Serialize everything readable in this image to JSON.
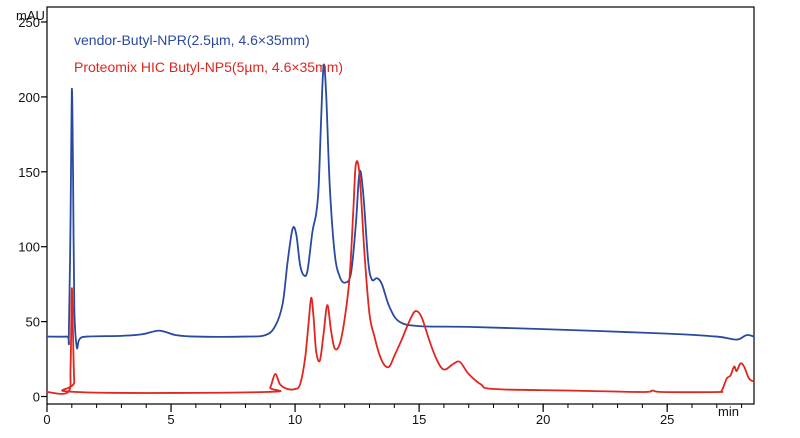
{
  "chart_data": {
    "type": "line",
    "title": "",
    "xlabel": "min",
    "ylabel": "mAU",
    "xlim": [
      0,
      28.5
    ],
    "ylim": [
      -5,
      260
    ],
    "legend_position": "top-left",
    "x_ticks": [
      0,
      5,
      10,
      15,
      20,
      25
    ],
    "y_ticks": [
      0,
      50,
      100,
      150,
      200,
      250
    ],
    "minor_x_step": 1,
    "series": [
      {
        "name": "vendor-Butyl-NPR(2.5µm, 4.6×35mm)",
        "color": "#2a49a0",
        "points": [
          [
            0,
            40
          ],
          [
            0.8,
            40
          ],
          [
            0.88,
            41
          ],
          [
            0.95,
            120
          ],
          [
            1.0,
            205
          ],
          [
            1.05,
            150
          ],
          [
            1.1,
            60
          ],
          [
            1.2,
            33
          ],
          [
            1.3,
            38
          ],
          [
            1.6,
            40
          ],
          [
            3.0,
            40.5
          ],
          [
            3.8,
            41.5
          ],
          [
            4.2,
            43
          ],
          [
            4.5,
            44
          ],
          [
            4.8,
            43
          ],
          [
            5.2,
            41
          ],
          [
            6.0,
            40
          ],
          [
            8.0,
            40
          ],
          [
            8.8,
            41
          ],
          [
            9.2,
            47
          ],
          [
            9.5,
            62
          ],
          [
            9.7,
            90
          ],
          [
            9.9,
            112
          ],
          [
            10.05,
            108
          ],
          [
            10.2,
            88
          ],
          [
            10.35,
            81
          ],
          [
            10.5,
            84
          ],
          [
            10.7,
            110
          ],
          [
            10.85,
            122
          ],
          [
            10.95,
            140
          ],
          [
            11.05,
            185
          ],
          [
            11.15,
            221
          ],
          [
            11.25,
            203
          ],
          [
            11.4,
            140
          ],
          [
            11.6,
            95
          ],
          [
            11.8,
            80
          ],
          [
            12.0,
            76
          ],
          [
            12.25,
            82
          ],
          [
            12.45,
            115
          ],
          [
            12.6,
            150
          ],
          [
            12.75,
            135
          ],
          [
            12.95,
            90
          ],
          [
            13.1,
            78
          ],
          [
            13.3,
            79
          ],
          [
            13.5,
            75
          ],
          [
            13.8,
            60
          ],
          [
            14.2,
            50
          ],
          [
            15.0,
            47
          ],
          [
            17.0,
            46.5
          ],
          [
            20.0,
            45
          ],
          [
            25.0,
            42
          ],
          [
            27.0,
            40
          ],
          [
            27.8,
            38
          ],
          [
            28.2,
            41
          ],
          [
            28.5,
            40
          ]
        ]
      },
      {
        "name": "Proteomix HIC Butyl-NP5(5µm, 4.6×35mm)",
        "color": "#e0261e",
        "points": [
          [
            0,
            3
          ],
          [
            0.85,
            3
          ],
          [
            0.95,
            20
          ],
          [
            1.0,
            72
          ],
          [
            1.05,
            40
          ],
          [
            1.1,
            10
          ],
          [
            1.2,
            3
          ],
          [
            8.8,
            3
          ],
          [
            9.0,
            6
          ],
          [
            9.2,
            15
          ],
          [
            9.4,
            8
          ],
          [
            9.7,
            5
          ],
          [
            10.0,
            5
          ],
          [
            10.2,
            8
          ],
          [
            10.4,
            25
          ],
          [
            10.55,
            50
          ],
          [
            10.65,
            66
          ],
          [
            10.75,
            52
          ],
          [
            10.85,
            30
          ],
          [
            11.0,
            24
          ],
          [
            11.15,
            42
          ],
          [
            11.3,
            61
          ],
          [
            11.45,
            44
          ],
          [
            11.6,
            32
          ],
          [
            11.8,
            35
          ],
          [
            12.0,
            52
          ],
          [
            12.2,
            80
          ],
          [
            12.35,
            125
          ],
          [
            12.45,
            155
          ],
          [
            12.6,
            148
          ],
          [
            12.8,
            95
          ],
          [
            13.0,
            55
          ],
          [
            13.2,
            40
          ],
          [
            13.4,
            28
          ],
          [
            13.6,
            21
          ],
          [
            13.8,
            20
          ],
          [
            14.0,
            27
          ],
          [
            14.3,
            38
          ],
          [
            14.6,
            50
          ],
          [
            14.85,
            57
          ],
          [
            15.1,
            53
          ],
          [
            15.4,
            38
          ],
          [
            15.7,
            25
          ],
          [
            16.0,
            18
          ],
          [
            16.4,
            22
          ],
          [
            16.65,
            23
          ],
          [
            17.0,
            15
          ],
          [
            17.5,
            8
          ],
          [
            18.0,
            5
          ],
          [
            21.0,
            4
          ],
          [
            24.0,
            3
          ],
          [
            24.4,
            4
          ],
          [
            24.8,
            3
          ],
          [
            27.0,
            3
          ],
          [
            27.2,
            4
          ],
          [
            27.4,
            12
          ],
          [
            27.55,
            14
          ],
          [
            27.7,
            20
          ],
          [
            27.8,
            17
          ],
          [
            27.95,
            22
          ],
          [
            28.1,
            20
          ],
          [
            28.3,
            12
          ],
          [
            28.5,
            10
          ]
        ]
      }
    ]
  }
}
